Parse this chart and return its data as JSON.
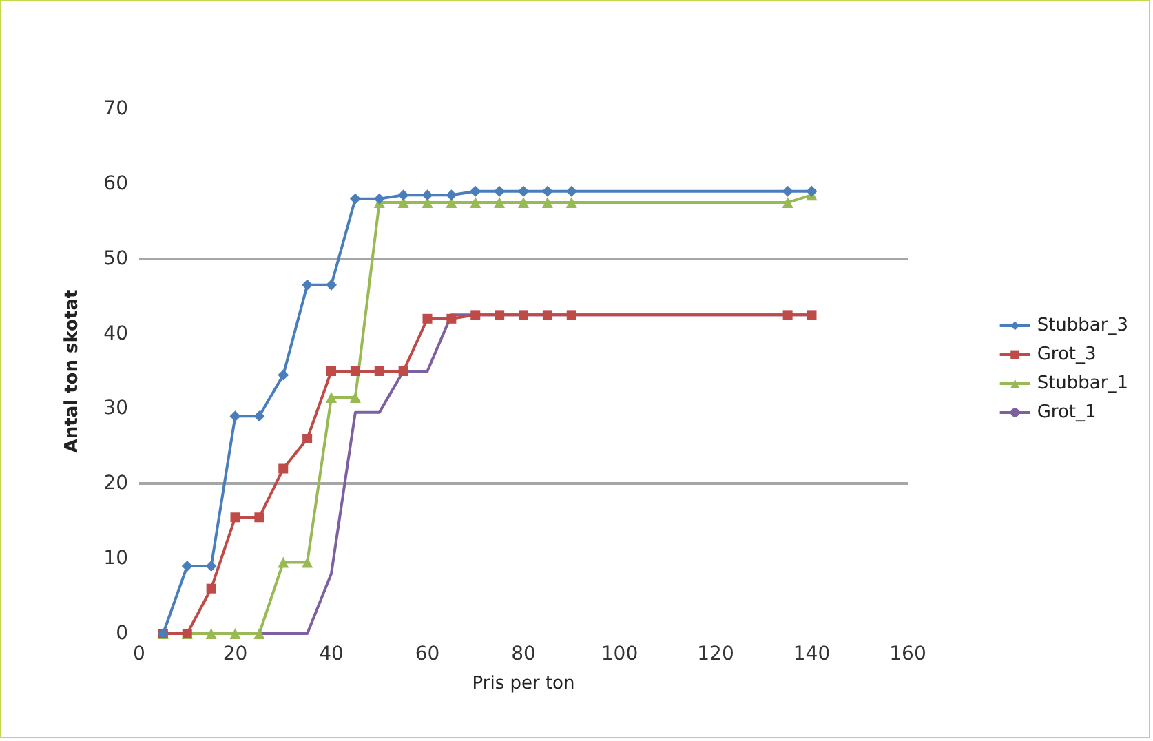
{
  "chart_data": {
    "type": "line",
    "xlabel": "Pris per ton",
    "ylabel": "Antal ton skotat",
    "x": [
      5,
      10,
      15,
      20,
      25,
      30,
      35,
      40,
      45,
      50,
      55,
      60,
      65,
      70,
      75,
      80,
      85,
      90,
      135,
      140
    ],
    "xlim": [
      0,
      160
    ],
    "xticks": [
      0,
      20,
      40,
      60,
      80,
      100,
      120,
      140,
      160
    ],
    "ylim": [
      0,
      70
    ],
    "yticks": [
      0,
      10,
      20,
      30,
      40,
      50,
      60,
      70
    ],
    "grid": false,
    "legend": "right",
    "ref_lines": [
      {
        "axis": "y",
        "value": 20,
        "color": "#a6a6a6"
      },
      {
        "axis": "y",
        "value": 50,
        "color": "#a6a6a6"
      }
    ],
    "series": [
      {
        "name": "Stubbar_3",
        "color": "#4a7ebb",
        "marker": "diamond",
        "values": [
          0,
          9,
          9,
          29,
          29,
          34.5,
          46.5,
          46.5,
          58,
          58,
          58.5,
          58.5,
          58.5,
          59,
          59,
          59,
          59,
          59,
          59,
          59
        ]
      },
      {
        "name": "Grot_3",
        "color": "#be4b48",
        "marker": "square",
        "values": [
          0,
          0,
          6,
          15.5,
          15.5,
          22,
          26,
          35,
          35,
          35,
          35,
          42,
          42,
          42.5,
          42.5,
          42.5,
          42.5,
          42.5,
          42.5,
          42.5
        ]
      },
      {
        "name": "Stubbar_1",
        "color": "#98b954",
        "marker": "triangle",
        "values": [
          0,
          0,
          0,
          0,
          0,
          9.5,
          9.5,
          31.5,
          31.5,
          57.5,
          57.5,
          57.5,
          57.5,
          57.5,
          57.5,
          57.5,
          57.5,
          57.5,
          57.5,
          58.5
        ]
      },
      {
        "name": "Grot_1",
        "color": "#7d60a0",
        "marker": "none",
        "values": [
          0,
          0,
          0,
          0,
          0,
          0,
          0,
          8,
          29.5,
          29.5,
          35,
          35,
          42.5,
          42.5,
          42.5,
          42.5,
          42.5,
          42.5,
          42.5,
          42.5
        ]
      }
    ]
  }
}
